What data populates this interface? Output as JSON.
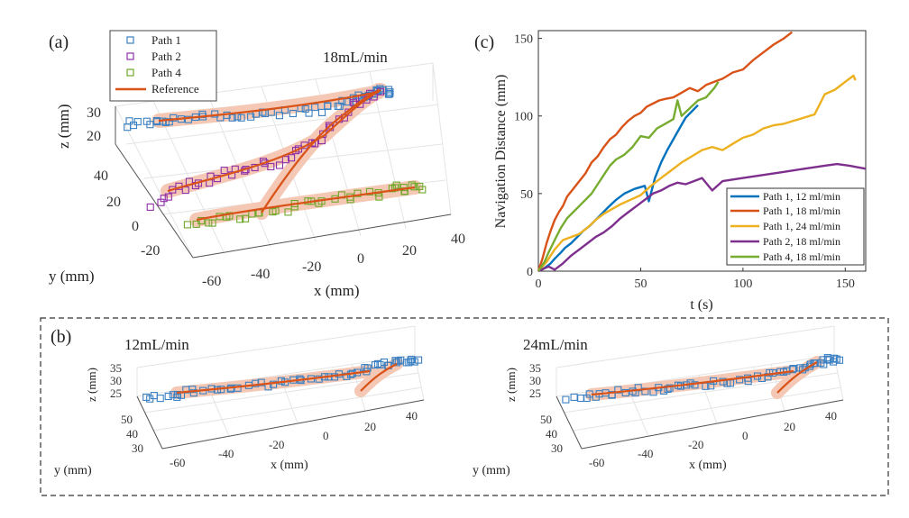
{
  "panels": {
    "a": {
      "tag": "(a)",
      "flow_label": "18mL/min"
    },
    "b": {
      "tag": "(b)",
      "flow_left": "12mL/min",
      "flow_right": "24mL/min"
    },
    "c": {
      "tag": "(c)"
    }
  },
  "legend_a": [
    "Path 1",
    "Path 2",
    "Path 4",
    "Reference"
  ],
  "axes_3d_a": {
    "zlabel": "z (mm)",
    "ylabel": "y (mm)",
    "xlabel": "x (mm)",
    "zticks": [
      "30",
      "20"
    ],
    "yticks": [
      "40",
      "20",
      "0",
      "-20"
    ],
    "xticks": [
      "-60",
      "-40",
      "-20",
      "0",
      "20",
      "40"
    ]
  },
  "axes_3d_b": {
    "zlabel": "z (mm)",
    "ylabel": "y (mm)",
    "xlabel": "x (mm)",
    "zticks": [
      "35",
      "30",
      "25"
    ],
    "yticks": [
      "50",
      "40",
      "30"
    ],
    "xticks": [
      "-60",
      "-40",
      "-20",
      "0",
      "20",
      "40"
    ]
  },
  "colors": {
    "path1": "#3b80c2",
    "path2": "#8e2ea8",
    "path4": "#6fa82b",
    "reference": "#d95319",
    "ref_band": "#f4c8b4",
    "c_12": "#0072bd",
    "c_18": "#d95319",
    "c_24": "#edb120",
    "c_p2": "#7e2f8e",
    "c_p4": "#77ac30"
  },
  "chart_data": {
    "type": "line",
    "title": "",
    "xlabel": "t (s)",
    "ylabel": "Navigation Distance (mm)",
    "xlim": [
      0,
      160
    ],
    "ylim": [
      0,
      155
    ],
    "xticks": [
      0,
      50,
      100,
      150
    ],
    "yticks": [
      0,
      50,
      100,
      150
    ],
    "legend_position": "bottom-right",
    "series": [
      {
        "name": "Path 1, 12 ml/min",
        "color": "#0072bd",
        "x": [
          0,
          3,
          6,
          8,
          11,
          13,
          16,
          19,
          22,
          25,
          28,
          31,
          34,
          38,
          42,
          47,
          52,
          54,
          57,
          60,
          63,
          66,
          69,
          72,
          75,
          78
        ],
        "y": [
          0,
          2,
          5,
          8,
          12,
          15,
          18,
          22,
          26,
          29,
          33,
          37,
          41,
          46,
          50,
          53,
          55,
          45,
          60,
          70,
          78,
          85,
          92,
          99,
          103,
          107
        ]
      },
      {
        "name": "Path 1, 18 ml/min",
        "color": "#d95319",
        "x": [
          0,
          2,
          4,
          6,
          8,
          10,
          12,
          14,
          17,
          20,
          23,
          26,
          29,
          32,
          35,
          38,
          41,
          44,
          47,
          50,
          53,
          56,
          59,
          62,
          66,
          70,
          74,
          78,
          82,
          86,
          90,
          95,
          100,
          105,
          110,
          115,
          120,
          124
        ],
        "y": [
          0,
          8,
          18,
          26,
          33,
          38,
          42,
          48,
          53,
          58,
          63,
          70,
          74,
          80,
          85,
          88,
          93,
          97,
          100,
          102,
          106,
          108,
          110,
          111,
          112,
          115,
          118,
          116,
          120,
          122,
          124,
          128,
          130,
          136,
          141,
          146,
          150,
          154
        ]
      },
      {
        "name": "Path 1, 24 ml/min",
        "color": "#edb120",
        "x": [
          0,
          4,
          8,
          12,
          16,
          20,
          24,
          28,
          32,
          36,
          40,
          45,
          50,
          55,
          60,
          65,
          70,
          75,
          80,
          85,
          90,
          95,
          100,
          105,
          110,
          115,
          120,
          125,
          130,
          135,
          140,
          145,
          150,
          154,
          155
        ],
        "y": [
          0,
          6,
          14,
          20,
          22,
          24,
          28,
          33,
          37,
          40,
          43,
          46,
          49,
          55,
          60,
          65,
          70,
          74,
          78,
          80,
          78,
          82,
          86,
          88,
          92,
          94,
          95,
          97,
          99,
          101,
          114,
          117,
          122,
          126,
          123
        ]
      },
      {
        "name": "Path 2, 18 ml/min",
        "color": "#7e2f8e",
        "x": [
          0,
          5,
          8,
          12,
          16,
          20,
          24,
          28,
          32,
          36,
          40,
          44,
          48,
          52,
          56,
          60,
          64,
          68,
          72,
          76,
          80,
          85,
          90,
          100,
          110,
          120,
          130,
          140,
          146,
          152,
          160
        ],
        "y": [
          0,
          3,
          1,
          5,
          10,
          14,
          18,
          22,
          25,
          29,
          34,
          38,
          42,
          46,
          50,
          52,
          55,
          57,
          56,
          58,
          60,
          52,
          58,
          60,
          62,
          64,
          66,
          68,
          69,
          68,
          66
        ]
      },
      {
        "name": "Path 4, 18 ml/min",
        "color": "#77ac30",
        "x": [
          0,
          3,
          5,
          8,
          11,
          14,
          17,
          20,
          23,
          26,
          29,
          32,
          35,
          38,
          42,
          46,
          50,
          54,
          58,
          62,
          66,
          68,
          70,
          74,
          78,
          82,
          86,
          88
        ],
        "y": [
          0,
          6,
          12,
          20,
          28,
          34,
          38,
          42,
          46,
          50,
          56,
          62,
          68,
          72,
          75,
          80,
          87,
          86,
          92,
          95,
          98,
          110,
          100,
          105,
          110,
          112,
          118,
          122
        ]
      }
    ]
  }
}
